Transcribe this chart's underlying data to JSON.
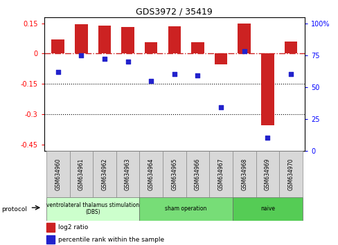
{
  "title": "GDS3972 / 35419",
  "samples": [
    "GSM634960",
    "GSM634961",
    "GSM634962",
    "GSM634963",
    "GSM634964",
    "GSM634965",
    "GSM634966",
    "GSM634967",
    "GSM634968",
    "GSM634969",
    "GSM634970"
  ],
  "log2_ratio": [
    0.07,
    0.145,
    0.138,
    0.132,
    0.055,
    0.135,
    0.055,
    -0.055,
    0.148,
    -0.355,
    0.06
  ],
  "percentile_rank": [
    62,
    75,
    72,
    70,
    55,
    60,
    59,
    34,
    78,
    10,
    60
  ],
  "ylim_left": [
    -0.48,
    0.18
  ],
  "ylim_right": [
    0,
    105
  ],
  "yticks_left": [
    0.15,
    0.0,
    -0.15,
    -0.3,
    -0.45
  ],
  "yticks_right": [
    100,
    75,
    50,
    25,
    0
  ],
  "bar_color": "#cc2222",
  "dot_color": "#2222cc",
  "hline_color": "#cc2222",
  "dotted_lines": [
    -0.15,
    -0.3
  ],
  "groups": [
    {
      "label": "ventrolateral thalamus stimulation\n(DBS)",
      "start": 0,
      "end": 3,
      "color": "#ccffcc"
    },
    {
      "label": "sham operation",
      "start": 4,
      "end": 7,
      "color": "#77dd77"
    },
    {
      "label": "naive",
      "start": 8,
      "end": 10,
      "color": "#55cc55"
    }
  ],
  "legend_bar_label": "log2 ratio",
  "legend_dot_label": "percentile rank within the sample",
  "protocol_label": "protocol",
  "bar_width": 0.55,
  "figsize": [
    4.89,
    3.54
  ],
  "dpi": 100
}
